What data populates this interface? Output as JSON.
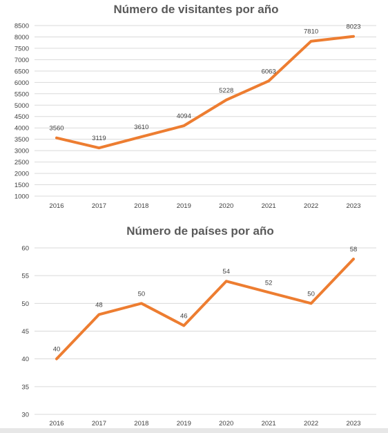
{
  "chart_data": [
    {
      "type": "line",
      "title": "Número de visitantes por año",
      "xlabel": "",
      "ylabel": "",
      "categories": [
        "2016",
        "2017",
        "2018",
        "2019",
        "2020",
        "2021",
        "2022",
        "2023"
      ],
      "series": [
        {
          "values": [
            3560,
            3119,
            3610,
            4094,
            5228,
            6063,
            7810,
            8023
          ],
          "color": "#ed7d31"
        }
      ],
      "ylim": [
        1000,
        8500
      ],
      "yticks": [
        1000,
        1500,
        2000,
        2500,
        3000,
        3500,
        4000,
        4500,
        5000,
        5500,
        6000,
        6500,
        7000,
        7500,
        8000,
        8500
      ],
      "grid": true,
      "data_labels": true
    },
    {
      "type": "line",
      "title": "Número de países por año",
      "xlabel": "",
      "ylabel": "",
      "categories": [
        "2016",
        "2017",
        "2018",
        "2019",
        "2020",
        "2021",
        "2022",
        "2023"
      ],
      "series": [
        {
          "values": [
            40,
            48,
            50,
            46,
            54,
            52,
            50,
            58
          ],
          "color": "#ed7d31"
        }
      ],
      "ylim": [
        30,
        60
      ],
      "yticks": [
        30,
        35,
        40,
        45,
        50,
        55,
        60
      ],
      "grid": true,
      "data_labels": true
    }
  ]
}
